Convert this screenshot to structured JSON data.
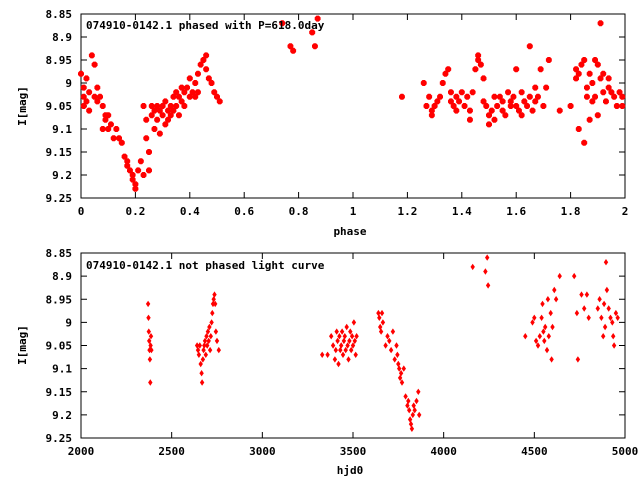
{
  "chart_data": [
    {
      "type": "scatter",
      "title": "074910-0142.1 phased with P=618.0day",
      "xlabel": "phase",
      "ylabel": "I[mag]",
      "xlim": [
        0,
        2
      ],
      "ylim": [
        8.85,
        9.25
      ],
      "y_inverted": true,
      "xticks": [
        0,
        0.2,
        0.4,
        0.6,
        0.8,
        1,
        1.2,
        1.4,
        1.6,
        1.8,
        2
      ],
      "yticks": [
        8.85,
        8.9,
        8.95,
        9,
        9.05,
        9.1,
        9.15,
        9.2,
        9.25
      ],
      "color": "#ff0000",
      "grid": false,
      "points": [
        [
          0.0,
          8.98
        ],
        [
          0.01,
          9.01
        ],
        [
          0.01,
          9.03
        ],
        [
          0.01,
          9.05
        ],
        [
          0.02,
          8.99
        ],
        [
          0.02,
          9.04
        ],
        [
          0.03,
          9.02
        ],
        [
          0.03,
          9.06
        ],
        [
          0.04,
          8.94
        ],
        [
          0.05,
          9.03
        ],
        [
          0.05,
          8.96
        ],
        [
          0.06,
          9.04
        ],
        [
          0.06,
          9.01
        ],
        [
          0.07,
          9.03
        ],
        [
          0.08,
          9.05
        ],
        [
          0.08,
          9.1
        ],
        [
          0.09,
          9.07
        ],
        [
          0.09,
          9.08
        ],
        [
          0.1,
          9.07
        ],
        [
          0.1,
          9.1
        ],
        [
          0.11,
          9.09
        ],
        [
          0.12,
          9.12
        ],
        [
          0.13,
          9.1
        ],
        [
          0.14,
          9.12
        ],
        [
          0.15,
          9.13
        ],
        [
          0.16,
          9.16
        ],
        [
          0.17,
          9.17
        ],
        [
          0.17,
          9.18
        ],
        [
          0.18,
          9.19
        ],
        [
          0.19,
          9.2
        ],
        [
          0.19,
          9.21
        ],
        [
          0.2,
          9.22
        ],
        [
          0.2,
          9.23
        ],
        [
          0.21,
          9.19
        ],
        [
          0.22,
          9.17
        ],
        [
          0.23,
          9.2
        ],
        [
          0.23,
          9.05
        ],
        [
          0.24,
          9.08
        ],
        [
          0.24,
          9.12
        ],
        [
          0.25,
          9.15
        ],
        [
          0.25,
          9.19
        ],
        [
          0.26,
          9.07
        ],
        [
          0.26,
          9.05
        ],
        [
          0.27,
          9.06
        ],
        [
          0.27,
          9.1
        ],
        [
          0.28,
          9.05
        ],
        [
          0.28,
          9.08
        ],
        [
          0.29,
          9.11
        ],
        [
          0.29,
          9.06
        ],
        [
          0.3,
          9.07
        ],
        [
          0.3,
          9.05
        ],
        [
          0.31,
          9.09
        ],
        [
          0.31,
          9.04
        ],
        [
          0.32,
          9.06
        ],
        [
          0.32,
          9.08
        ],
        [
          0.33,
          9.05
        ],
        [
          0.33,
          9.07
        ],
        [
          0.34,
          9.03
        ],
        [
          0.34,
          9.06
        ],
        [
          0.35,
          9.02
        ],
        [
          0.35,
          9.05
        ],
        [
          0.36,
          9.03
        ],
        [
          0.36,
          9.07
        ],
        [
          0.37,
          9.01
        ],
        [
          0.37,
          9.04
        ],
        [
          0.38,
          9.02
        ],
        [
          0.38,
          9.05
        ],
        [
          0.39,
          9.01
        ],
        [
          0.4,
          9.03
        ],
        [
          0.4,
          8.99
        ],
        [
          0.41,
          9.02
        ],
        [
          0.42,
          9.0
        ],
        [
          0.42,
          9.03
        ],
        [
          0.43,
          8.98
        ],
        [
          0.43,
          9.02
        ],
        [
          0.44,
          8.96
        ],
        [
          0.45,
          8.95
        ],
        [
          0.46,
          8.94
        ],
        [
          0.46,
          8.97
        ],
        [
          0.47,
          8.99
        ],
        [
          0.48,
          9.0
        ],
        [
          0.49,
          9.02
        ],
        [
          0.5,
          9.03
        ],
        [
          0.51,
          9.04
        ],
        [
          0.74,
          8.87
        ],
        [
          0.77,
          8.92
        ],
        [
          0.78,
          8.93
        ],
        [
          0.85,
          8.89
        ],
        [
          0.86,
          8.92
        ],
        [
          0.87,
          8.86
        ],
        [
          1.18,
          9.03
        ],
        [
          1.26,
          9.0
        ],
        [
          1.27,
          9.05
        ],
        [
          1.28,
          9.03
        ],
        [
          1.29,
          9.07
        ],
        [
          1.29,
          9.06
        ],
        [
          1.3,
          9.05
        ],
        [
          1.31,
          9.04
        ],
        [
          1.32,
          9.03
        ],
        [
          1.33,
          9.0
        ],
        [
          1.34,
          8.98
        ],
        [
          1.35,
          8.97
        ],
        [
          1.36,
          9.02
        ],
        [
          1.36,
          9.04
        ],
        [
          1.37,
          9.05
        ],
        [
          1.38,
          9.03
        ],
        [
          1.38,
          9.06
        ],
        [
          1.39,
          9.04
        ],
        [
          1.4,
          9.02
        ],
        [
          1.41,
          9.05
        ],
        [
          1.42,
          9.03
        ],
        [
          1.43,
          9.06
        ],
        [
          1.43,
          9.08
        ],
        [
          1.44,
          9.02
        ],
        [
          1.45,
          8.97
        ],
        [
          1.46,
          8.95
        ],
        [
          1.46,
          8.94
        ],
        [
          1.47,
          8.96
        ],
        [
          1.48,
          8.99
        ],
        [
          1.48,
          9.04
        ],
        [
          1.49,
          9.05
        ],
        [
          1.5,
          9.07
        ],
        [
          1.5,
          9.09
        ],
        [
          1.51,
          9.06
        ],
        [
          1.52,
          9.03
        ],
        [
          1.52,
          9.08
        ],
        [
          1.53,
          9.05
        ],
        [
          1.54,
          9.03
        ],
        [
          1.55,
          9.06
        ],
        [
          1.55,
          9.04
        ],
        [
          1.56,
          9.07
        ],
        [
          1.57,
          9.02
        ],
        [
          1.58,
          9.05
        ],
        [
          1.58,
          9.04
        ],
        [
          1.59,
          9.03
        ],
        [
          1.6,
          8.97
        ],
        [
          1.6,
          9.05
        ],
        [
          1.61,
          9.06
        ],
        [
          1.62,
          9.02
        ],
        [
          1.62,
          9.07
        ],
        [
          1.63,
          9.04
        ],
        [
          1.64,
          9.05
        ],
        [
          1.65,
          9.03
        ],
        [
          1.65,
          8.92
        ],
        [
          1.66,
          9.06
        ],
        [
          1.67,
          9.01
        ],
        [
          1.67,
          9.04
        ],
        [
          1.68,
          9.03
        ],
        [
          1.69,
          8.97
        ],
        [
          1.7,
          9.05
        ],
        [
          1.71,
          9.01
        ],
        [
          1.72,
          8.95
        ],
        [
          1.76,
          9.06
        ],
        [
          1.8,
          9.05
        ],
        [
          1.82,
          8.97
        ],
        [
          1.82,
          8.99
        ],
        [
          1.83,
          8.98
        ],
        [
          1.83,
          9.1
        ],
        [
          1.84,
          8.96
        ],
        [
          1.85,
          8.95
        ],
        [
          1.85,
          9.13
        ],
        [
          1.86,
          9.01
        ],
        [
          1.86,
          9.03
        ],
        [
          1.87,
          8.98
        ],
        [
          1.87,
          9.08
        ],
        [
          1.88,
          9.0
        ],
        [
          1.88,
          9.04
        ],
        [
          1.89,
          8.95
        ],
        [
          1.89,
          9.03
        ],
        [
          1.9,
          8.96
        ],
        [
          1.9,
          9.07
        ],
        [
          1.91,
          8.99
        ],
        [
          1.91,
          8.87
        ],
        [
          1.92,
          9.02
        ],
        [
          1.92,
          8.98
        ],
        [
          1.93,
          9.04
        ],
        [
          1.94,
          9.01
        ],
        [
          1.94,
          8.99
        ],
        [
          1.95,
          9.02
        ],
        [
          1.96,
          9.03
        ],
        [
          1.97,
          9.05
        ],
        [
          1.98,
          9.02
        ],
        [
          1.99,
          9.03
        ],
        [
          1.99,
          9.05
        ]
      ]
    },
    {
      "type": "scatter",
      "title": "074910-0142.1 not phased light curve",
      "xlabel": "hjd0",
      "ylabel": "I[mag]",
      "xlim": [
        2000,
        5000
      ],
      "ylim": [
        8.85,
        9.25
      ],
      "y_inverted": true,
      "xticks": [
        2000,
        2500,
        3000,
        3500,
        4000,
        4500,
        5000
      ],
      "yticks": [
        8.85,
        8.9,
        8.95,
        9,
        9.05,
        9.1,
        9.15,
        9.2,
        9.25
      ],
      "color": "#ff0000",
      "grid": false,
      "points": [
        [
          2370,
          8.96
        ],
        [
          2372,
          8.99
        ],
        [
          2374,
          9.02
        ],
        [
          2376,
          9.04
        ],
        [
          2378,
          9.06
        ],
        [
          2380,
          9.08
        ],
        [
          2382,
          9.13
        ],
        [
          2384,
          9.05
        ],
        [
          2386,
          9.03
        ],
        [
          2388,
          9.06
        ],
        [
          2640,
          9.05
        ],
        [
          2645,
          9.06
        ],
        [
          2650,
          9.07
        ],
        [
          2655,
          9.05
        ],
        [
          2660,
          9.09
        ],
        [
          2665,
          9.11
        ],
        [
          2668,
          9.13
        ],
        [
          2672,
          9.08
        ],
        [
          2676,
          9.06
        ],
        [
          2680,
          9.05
        ],
        [
          2684,
          9.04
        ],
        [
          2688,
          9.07
        ],
        [
          2692,
          9.03
        ],
        [
          2696,
          9.05
        ],
        [
          2700,
          9.02
        ],
        [
          2704,
          9.04
        ],
        [
          2708,
          9.01
        ],
        [
          2712,
          9.06
        ],
        [
          2716,
          9.03
        ],
        [
          2720,
          9.0
        ],
        [
          2724,
          8.98
        ],
        [
          2728,
          8.96
        ],
        [
          2732,
          8.95
        ],
        [
          2736,
          8.94
        ],
        [
          2740,
          8.96
        ],
        [
          2744,
          9.02
        ],
        [
          2750,
          9.04
        ],
        [
          2760,
          9.06
        ],
        [
          3330,
          9.07
        ],
        [
          3360,
          9.07
        ],
        [
          3380,
          9.03
        ],
        [
          3390,
          9.05
        ],
        [
          3400,
          9.08
        ],
        [
          3405,
          9.06
        ],
        [
          3410,
          9.02
        ],
        [
          3415,
          9.04
        ],
        [
          3420,
          9.09
        ],
        [
          3425,
          9.03
        ],
        [
          3430,
          9.06
        ],
        [
          3435,
          9.05
        ],
        [
          3440,
          9.02
        ],
        [
          3445,
          9.07
        ],
        [
          3450,
          9.04
        ],
        [
          3455,
          9.03
        ],
        [
          3460,
          9.06
        ],
        [
          3465,
          9.01
        ],
        [
          3470,
          9.05
        ],
        [
          3475,
          9.08
        ],
        [
          3480,
          9.04
        ],
        [
          3485,
          9.02
        ],
        [
          3490,
          9.06
        ],
        [
          3495,
          9.03
        ],
        [
          3500,
          9.05
        ],
        [
          3505,
          9.0
        ],
        [
          3510,
          9.04
        ],
        [
          3515,
          9.07
        ],
        [
          3520,
          9.03
        ],
        [
          3640,
          8.98
        ],
        [
          3645,
          8.99
        ],
        [
          3650,
          9.01
        ],
        [
          3655,
          9.02
        ],
        [
          3660,
          8.98
        ],
        [
          3665,
          9.0
        ],
        [
          3680,
          9.05
        ],
        [
          3690,
          9.03
        ],
        [
          3700,
          9.04
        ],
        [
          3710,
          9.06
        ],
        [
          3720,
          9.02
        ],
        [
          3730,
          9.08
        ],
        [
          3740,
          9.05
        ],
        [
          3745,
          9.07
        ],
        [
          3750,
          9.09
        ],
        [
          3755,
          9.1
        ],
        [
          3760,
          9.12
        ],
        [
          3765,
          9.11
        ],
        [
          3770,
          9.13
        ],
        [
          3780,
          9.1
        ],
        [
          3790,
          9.16
        ],
        [
          3800,
          9.18
        ],
        [
          3805,
          9.17
        ],
        [
          3810,
          9.19
        ],
        [
          3815,
          9.21
        ],
        [
          3820,
          9.22
        ],
        [
          3825,
          9.23
        ],
        [
          3830,
          9.2
        ],
        [
          3835,
          9.18
        ],
        [
          3840,
          9.19
        ],
        [
          3850,
          9.17
        ],
        [
          3860,
          9.15
        ],
        [
          3865,
          9.2
        ],
        [
          4160,
          8.88
        ],
        [
          4230,
          8.89
        ],
        [
          4240,
          8.86
        ],
        [
          4245,
          8.92
        ],
        [
          4450,
          9.03
        ],
        [
          4490,
          9.0
        ],
        [
          4500,
          8.99
        ],
        [
          4510,
          9.04
        ],
        [
          4520,
          9.05
        ],
        [
          4530,
          9.03
        ],
        [
          4540,
          8.99
        ],
        [
          4545,
          8.96
        ],
        [
          4550,
          9.02
        ],
        [
          4555,
          9.04
        ],
        [
          4560,
          9.01
        ],
        [
          4570,
          9.06
        ],
        [
          4575,
          8.95
        ],
        [
          4580,
          9.03
        ],
        [
          4590,
          8.98
        ],
        [
          4595,
          9.08
        ],
        [
          4600,
          9.01
        ],
        [
          4610,
          8.93
        ],
        [
          4620,
          8.95
        ],
        [
          4640,
          8.9
        ],
        [
          4720,
          8.9
        ],
        [
          4735,
          8.98
        ],
        [
          4740,
          9.08
        ],
        [
          4760,
          8.94
        ],
        [
          4775,
          8.97
        ],
        [
          4790,
          8.94
        ],
        [
          4800,
          8.99
        ],
        [
          4850,
          8.97
        ],
        [
          4860,
          8.95
        ],
        [
          4870,
          8.99
        ],
        [
          4880,
          9.03
        ],
        [
          4885,
          8.96
        ],
        [
          4890,
          9.01
        ],
        [
          4895,
          8.87
        ],
        [
          4900,
          8.93
        ],
        [
          4910,
          8.97
        ],
        [
          4920,
          8.99
        ],
        [
          4930,
          9.0
        ],
        [
          4935,
          9.03
        ],
        [
          4940,
          9.05
        ],
        [
          4950,
          8.98
        ],
        [
          4960,
          8.99
        ]
      ]
    }
  ]
}
